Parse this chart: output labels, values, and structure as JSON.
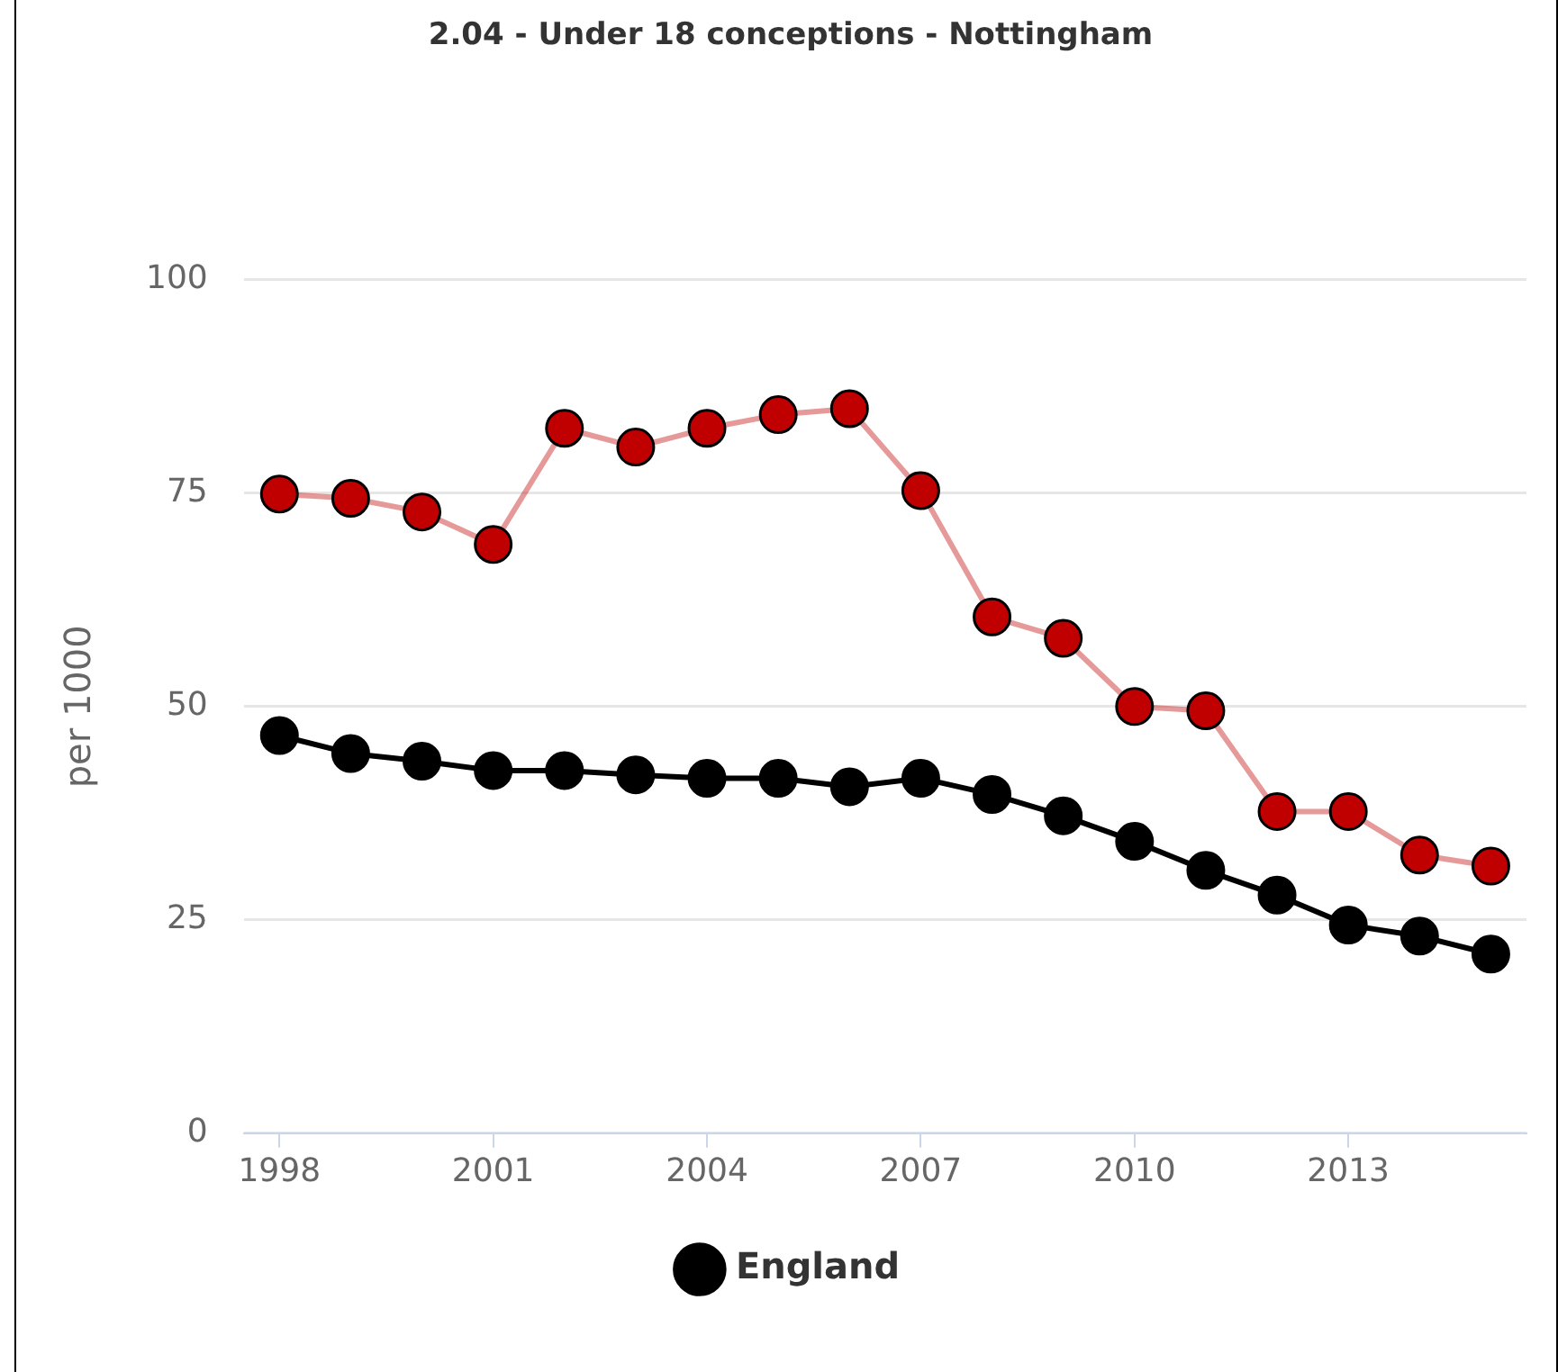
{
  "chart_data": {
    "type": "line",
    "title": "2.04 - Under 18 conceptions - Nottingham",
    "ylabel": "per 1000",
    "x": [
      1998,
      1999,
      2000,
      2001,
      2002,
      2003,
      2004,
      2005,
      2006,
      2007,
      2008,
      2009,
      2010,
      2011,
      2012,
      2013,
      2014,
      2015
    ],
    "series": [
      {
        "color": "#c00000",
        "values": [
          74.9,
          74.4,
          72.8,
          69,
          82.6,
          80.4,
          82.6,
          84.2,
          84.9,
          75.3,
          60.5,
          58,
          50,
          49.5,
          37.7,
          37.7,
          32.6,
          31.3
        ]
      },
      {
        "name": "England",
        "color": "#000000",
        "values": [
          46.6,
          44.5,
          43.6,
          42.5,
          42.5,
          42,
          41.6,
          41.6,
          40.6,
          41.6,
          39.7,
          37.2,
          34.2,
          30.8,
          27.9,
          24.4,
          23.1,
          21
        ]
      }
    ],
    "xlim": [
      1997.5,
      2015.5
    ],
    "xticks": [
      1998,
      2001,
      2004,
      2007,
      2010,
      2013
    ],
    "ylim": [
      0,
      100
    ],
    "yticks": [
      0,
      25,
      50,
      75,
      100
    ],
    "grid": "y",
    "legend": "bottom",
    "marker": "circle"
  }
}
